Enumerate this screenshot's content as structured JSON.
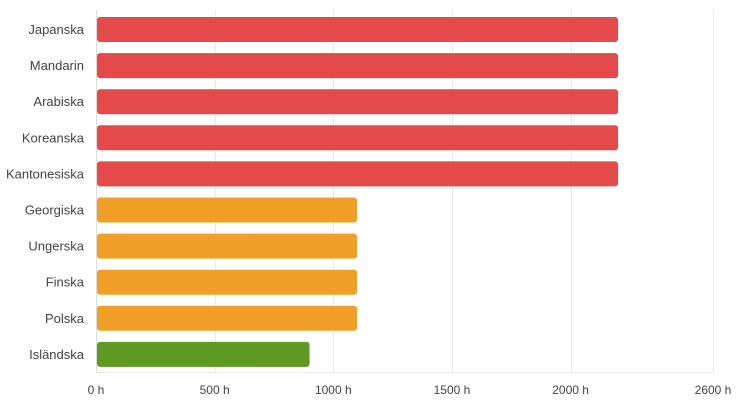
{
  "chart_data": {
    "type": "bar",
    "orientation": "horizontal",
    "categories": [
      "Japanska",
      "Mandarin",
      "Arabiska",
      "Koreanska",
      "Kantonesiska",
      "Georgiska",
      "Ungerska",
      "Finska",
      "Polska",
      "Isländska"
    ],
    "values": [
      2200,
      2200,
      2200,
      2200,
      2200,
      1100,
      1100,
      1100,
      1100,
      900
    ],
    "colors": [
      "#e44a4a",
      "#e44a4a",
      "#e44a4a",
      "#e44a4a",
      "#e44a4a",
      "#f0a026",
      "#f0a026",
      "#f0a026",
      "#f0a026",
      "#5f9a23"
    ],
    "xticks": [
      0,
      500,
      1000,
      1500,
      2000,
      2600
    ],
    "xtick_labels": [
      "0 h",
      "500 h",
      "1000 h",
      "1500 h",
      "2000 h",
      "2600 h"
    ],
    "xlim": [
      0,
      2600
    ],
    "title": "",
    "xlabel": "",
    "ylabel": "",
    "grid": true,
    "legend": "none"
  }
}
